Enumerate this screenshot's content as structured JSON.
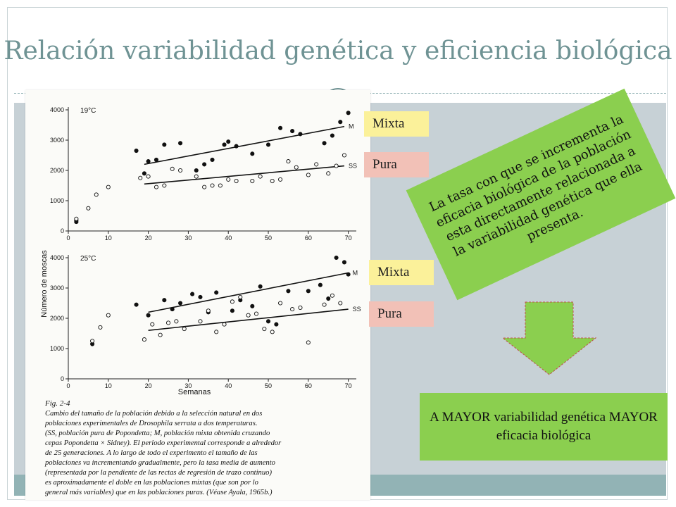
{
  "slide": {
    "title": "Relación variabilidad genética y eficiencia biológica"
  },
  "tags": {
    "mixta_1": "Mixta",
    "pura_1": "Pura",
    "mixta_2": "Mixta",
    "pura_2": "Pura"
  },
  "callout": {
    "text": "La tasa con que se incrementa la eficacia biológica de la población esta directamente relacionada a la variabilidad genética que ella presenta."
  },
  "conclusion": {
    "text": "A MAYOR variabilidad genética MAYOR eficacia biológica"
  },
  "colors": {
    "title": "#6f9394",
    "band": "#c7d1d6",
    "footer": "#92b3b5",
    "green": "#8bcf4f",
    "mixta_tag": "#fbf19a",
    "pura_tag": "#f2c1b7"
  },
  "figure": {
    "label": "Fig. 2-4",
    "caption_lines": [
      "Cambio del tamaño de la población debido a la selección natural en dos",
      "poblaciones experimentales de Drosophila serrata a dos temperaturas.",
      "(SS, población pura de Popondetta; M, población mixta obtenida cruzando",
      "cepas Popondetta × Sidney). El periodo experimental corresponde a alrededor",
      "de 25 generaciones. A lo largo de todo el experimento el tamaño de las",
      "poblaciones va incrementando gradualmente, pero la tasa media de aumento",
      "(representada por la pendiente de las rectas de regresión de trazo continuo)",
      "es aproximadamente el doble en las poblaciones mixtas (que son por lo",
      "general más variables) que en las poblaciones puras. (Véase Ayala, 1965b.)"
    ]
  },
  "chart_data": [
    {
      "type": "scatter",
      "panel_label": "19°C",
      "xlabel": "Semanas",
      "ylabel": "Número de moscas",
      "xlim": [
        0,
        72
      ],
      "ylim": [
        0,
        4000
      ],
      "x_ticks": [
        0,
        10,
        20,
        30,
        40,
        50,
        60,
        70
      ],
      "y_ticks": [
        0,
        1000,
        2000,
        3000,
        4000
      ],
      "series": [
        {
          "name": "M",
          "marker": "filled",
          "points": [
            [
              2,
              350
            ],
            [
              2,
              300
            ],
            [
              17,
              2650
            ],
            [
              19,
              1900
            ],
            [
              20,
              2300
            ],
            [
              22,
              2350
            ],
            [
              24,
              2850
            ],
            [
              28,
              2900
            ],
            [
              32,
              2000
            ],
            [
              34,
              2200
            ],
            [
              36,
              2350
            ],
            [
              39,
              2850
            ],
            [
              40,
              2950
            ],
            [
              42,
              2800
            ],
            [
              46,
              2550
            ],
            [
              50,
              2850
            ],
            [
              53,
              3400
            ],
            [
              56,
              3300
            ],
            [
              58,
              3200
            ],
            [
              64,
              2900
            ],
            [
              66,
              3150
            ],
            [
              68,
              3600
            ],
            [
              70,
              3900
            ]
          ],
          "trend": [
            [
              19,
              2200
            ],
            [
              69,
              3450
            ]
          ]
        },
        {
          "name": "SS",
          "marker": "open",
          "points": [
            [
              2,
              400
            ],
            [
              5,
              750
            ],
            [
              7,
              1200
            ],
            [
              10,
              1450
            ],
            [
              18,
              1750
            ],
            [
              20,
              1800
            ],
            [
              22,
              1450
            ],
            [
              24,
              1500
            ],
            [
              26,
              2050
            ],
            [
              28,
              2000
            ],
            [
              32,
              1800
            ],
            [
              34,
              1450
            ],
            [
              36,
              1500
            ],
            [
              38,
              1500
            ],
            [
              40,
              1700
            ],
            [
              42,
              1650
            ],
            [
              46,
              1650
            ],
            [
              48,
              1800
            ],
            [
              51,
              1650
            ],
            [
              53,
              1700
            ],
            [
              55,
              2300
            ],
            [
              57,
              2100
            ],
            [
              60,
              1850
            ],
            [
              62,
              2200
            ],
            [
              65,
              1900
            ],
            [
              67,
              2150
            ],
            [
              69,
              2500
            ]
          ],
          "trend": [
            [
              19,
              1550
            ],
            [
              69,
              2150
            ]
          ]
        }
      ]
    },
    {
      "type": "scatter",
      "panel_label": "25°C",
      "xlabel": "Semanas",
      "ylabel": "Número de moscas",
      "xlim": [
        0,
        72
      ],
      "ylim": [
        0,
        4000
      ],
      "x_ticks": [
        0,
        10,
        20,
        30,
        40,
        50,
        60,
        70
      ],
      "y_ticks": [
        0,
        1000,
        2000,
        3000,
        4000
      ],
      "series": [
        {
          "name": "M",
          "marker": "filled",
          "points": [
            [
              6,
              1150
            ],
            [
              17,
              2450
            ],
            [
              20,
              2100
            ],
            [
              24,
              2600
            ],
            [
              26,
              2300
            ],
            [
              28,
              2500
            ],
            [
              31,
              2800
            ],
            [
              33,
              2700
            ],
            [
              35,
              2200
            ],
            [
              37,
              2850
            ],
            [
              41,
              2250
            ],
            [
              43,
              2600
            ],
            [
              46,
              2400
            ],
            [
              48,
              3050
            ],
            [
              50,
              1900
            ],
            [
              52,
              1800
            ],
            [
              55,
              2900
            ],
            [
              60,
              2900
            ],
            [
              63,
              3100
            ],
            [
              65,
              2650
            ],
            [
              67,
              4000
            ],
            [
              69,
              3850
            ],
            [
              70,
              3450
            ]
          ],
          "trend": [
            [
              20,
              2200
            ],
            [
              70,
              3500
            ]
          ]
        },
        {
          "name": "SS",
          "marker": "open",
          "points": [
            [
              6,
              1250
            ],
            [
              8,
              1700
            ],
            [
              10,
              2100
            ],
            [
              19,
              1300
            ],
            [
              21,
              1800
            ],
            [
              23,
              1450
            ],
            [
              25,
              1850
            ],
            [
              27,
              1900
            ],
            [
              29,
              1650
            ],
            [
              33,
              1900
            ],
            [
              35,
              2250
            ],
            [
              37,
              1550
            ],
            [
              39,
              1800
            ],
            [
              41,
              2550
            ],
            [
              43,
              2700
            ],
            [
              45,
              2100
            ],
            [
              47,
              2150
            ],
            [
              49,
              1650
            ],
            [
              51,
              1550
            ],
            [
              53,
              2500
            ],
            [
              56,
              2300
            ],
            [
              58,
              2350
            ],
            [
              60,
              1200
            ],
            [
              64,
              2450
            ],
            [
              66,
              2750
            ],
            [
              68,
              2500
            ]
          ],
          "trend": [
            [
              20,
              1600
            ],
            [
              70,
              2300
            ]
          ]
        }
      ]
    }
  ]
}
